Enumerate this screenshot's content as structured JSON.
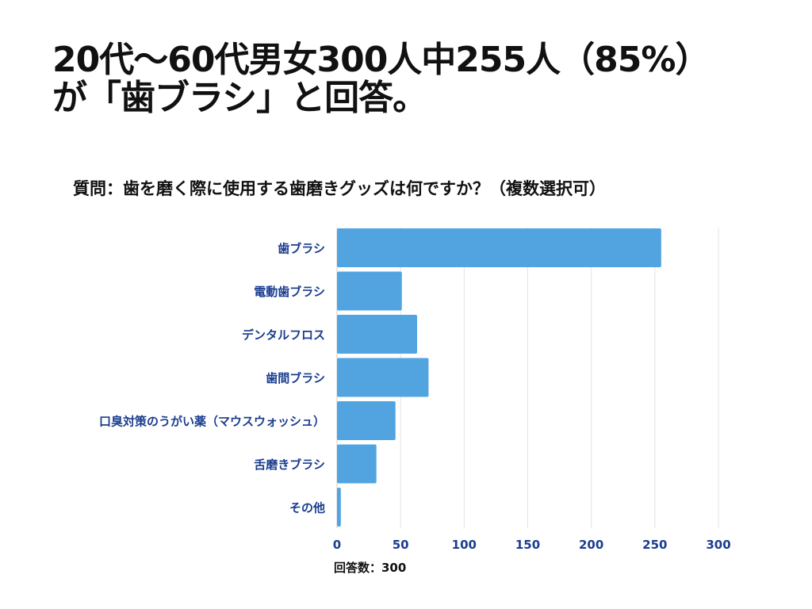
{
  "headline": {
    "line1": "20代～60代男女300人中255人（85%）",
    "line2": "が「歯ブラシ」と回答。"
  },
  "chart_data": {
    "type": "bar",
    "orientation": "horizontal",
    "title": "質問：歯を磨く際に使用する歯磨きグッズは何ですか？（複数選択可）",
    "categories": [
      "歯ブラシ",
      "電動歯ブラシ",
      "デンタルフロス",
      "歯間ブラシ",
      "口臭対策のうがい薬（マウスウォッシュ）",
      "舌磨きブラシ",
      "その他"
    ],
    "values": [
      255,
      51,
      63,
      72,
      46,
      31,
      3
    ],
    "xlabel": "回答数：300",
    "xlim": [
      0,
      300
    ],
    "xticks": [
      "0",
      "50",
      "100",
      "150",
      "200",
      "250",
      "300"
    ],
    "grid": true,
    "bar_color": "#52a4e0",
    "grid_color": "#e3e3e3",
    "label_color": "#1b3d8f"
  }
}
